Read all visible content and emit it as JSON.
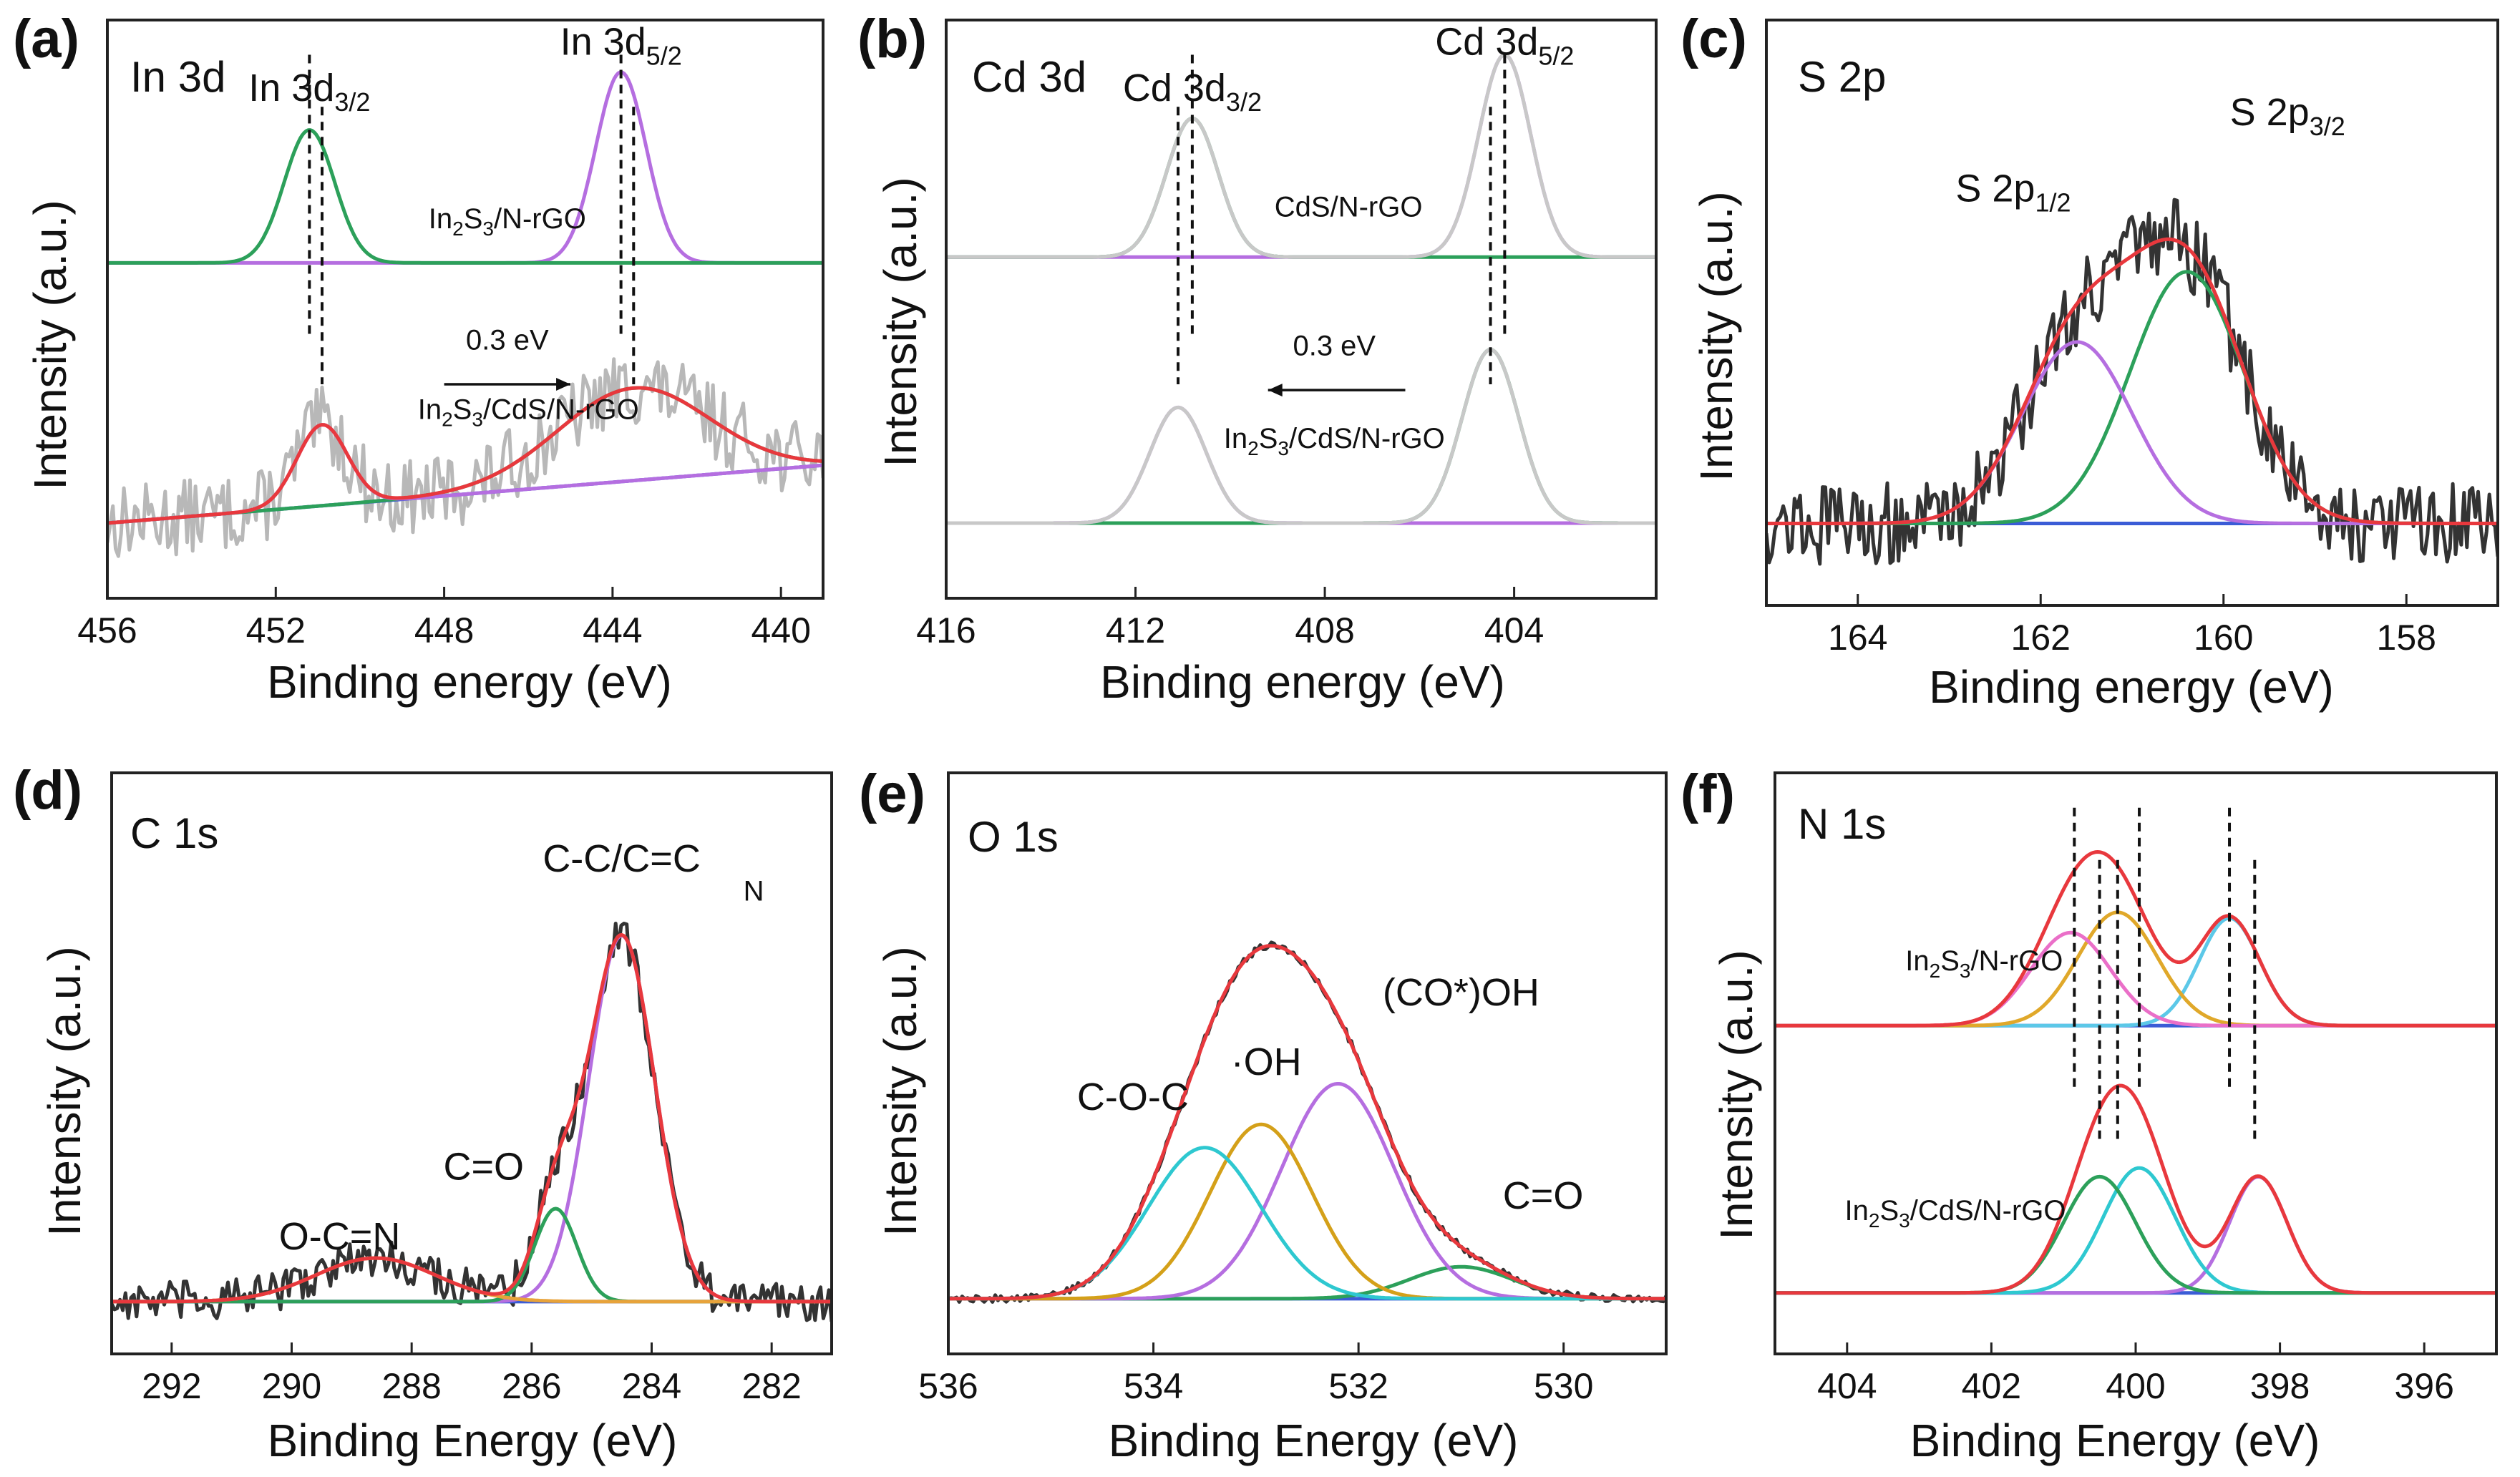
{
  "chart_data": [
    {
      "id": "a",
      "type": "line",
      "panel_label": "(a)",
      "title": "In 3d",
      "xlabel": "Binding energy (eV)",
      "ylabel": "Intensity (a.u.)",
      "xlim": [
        456,
        439
      ],
      "xticks": [
        456,
        452,
        448,
        444,
        440
      ],
      "ylim": [
        0,
        10
      ],
      "series": [
        {
          "name": "In2S3/N-rGO In 3d3/2 fit",
          "color": "#2ca05a",
          "baseline": 5.8,
          "peaks": [
            {
              "center": 451.2,
              "height": 2.3,
              "width": 0.6
            }
          ]
        },
        {
          "name": "In2S3/N-rGO In 3d5/2 fit",
          "color": "#b56ee0",
          "baseline": 5.8,
          "peaks": [
            {
              "center": 443.8,
              "height": 3.3,
              "width": 0.6
            }
          ]
        },
        {
          "name": "In2S3/CdS/N-rGO envelope",
          "color": "#e8383d",
          "baseline": [
            1.3,
            2.3
          ],
          "peaks": [
            {
              "center": 450.9,
              "height": 1.4,
              "width": 0.6
            },
            {
              "center": 443.5,
              "height": 1.6,
              "width": 1.8
            }
          ]
        },
        {
          "name": "In2S3/CdS/N-rGO In 3d3/2 fit",
          "color": "#b56ee0",
          "baseline": [
            1.3,
            2.3
          ],
          "peaks": [
            {
              "center": 450.9,
              "height": 1.4,
              "width": 0.6
            }
          ]
        },
        {
          "name": "In2S3/CdS/N-rGO In 3d5/2 fit",
          "color": "#2ca05a",
          "baseline": [
            1.3,
            2.3
          ],
          "peaks": [
            {
              "center": 443.5,
              "height": 1.6,
              "width": 1.8
            }
          ]
        },
        {
          "name": "background",
          "color": "#3b5cd6",
          "baseline": [
            1.3,
            2.3
          ],
          "peaks": []
        }
      ],
      "raw": {
        "color": "#b8b8b8",
        "of": "In2S3/CdS/N-rGO envelope",
        "noise": 0.65
      },
      "dashed_x": [
        451.2,
        450.9,
        443.8,
        443.5
      ],
      "annotations": [
        {
          "text": "In 3d",
          "sub": "3/2",
          "x": 451.2,
          "y": 8.6,
          "size": "ann"
        },
        {
          "text": "In 3d",
          "sub": "5/2",
          "x": 443.8,
          "y": 9.4,
          "size": "ann"
        },
        {
          "text": "In",
          "sub": "2",
          "mid": "S",
          "sub2": "3",
          "tail": "/N-rGO",
          "x": 446.5,
          "y": 6.4,
          "size": "sann"
        },
        {
          "text": "0.3 eV",
          "x": 446.5,
          "y": 4.3,
          "size": "sann"
        },
        {
          "text": "In",
          "sub": "2",
          "mid": "S",
          "sub2": "3",
          "tail": "/CdS/N-rGO",
          "x": 446.0,
          "y": 3.1,
          "size": "sann"
        }
      ],
      "arrow": {
        "from": 448.0,
        "to": 445.0,
        "y": 3.7,
        "direction": "right",
        "label": "0.3 eV"
      }
    },
    {
      "id": "b",
      "type": "line",
      "panel_label": "(b)",
      "title": "Cd 3d",
      "xlabel": "Binding energy (eV)",
      "ylabel": "Intensity (a.u.)",
      "xlim": [
        416,
        401
      ],
      "xticks": [
        416,
        412,
        408,
        404
      ],
      "ylim": [
        0,
        10
      ],
      "series": [
        {
          "name": "CdS/N-rGO envelope",
          "color": "#c8c8c8",
          "baseline": 5.9,
          "peaks": [
            {
              "center": 410.8,
              "height": 2.4,
              "width": 0.55
            },
            {
              "center": 404.2,
              "height": 3.5,
              "width": 0.55
            }
          ]
        },
        {
          "name": "CdS/N-rGO Cd 3d3/2 fit",
          "color": "#2ca05a",
          "baseline": 5.9,
          "peaks": [
            {
              "center": 410.8,
              "height": 2.4,
              "width": 0.55
            }
          ]
        },
        {
          "name": "CdS/N-rGO Cd 3d5/2 fit",
          "color": "#b56ee0",
          "baseline": 5.9,
          "peaks": [
            {
              "center": 404.2,
              "height": 3.5,
              "width": 0.55
            }
          ]
        },
        {
          "name": "In2S3/CdS/N-rGO envelope",
          "color": "#c8c8c8",
          "baseline": 1.3,
          "peaks": [
            {
              "center": 411.1,
              "height": 2.0,
              "width": 0.6
            },
            {
              "center": 404.5,
              "height": 3.0,
              "width": 0.6
            }
          ]
        },
        {
          "name": "In2S3/CdS/N-rGO Cd 3d3/2 fit",
          "color": "#b56ee0",
          "baseline": 1.3,
          "peaks": [
            {
              "center": 411.1,
              "height": 2.0,
              "width": 0.6
            }
          ]
        },
        {
          "name": "In2S3/CdS/N-rGO Cd 3d5/2 fit",
          "color": "#2ca05a",
          "baseline": 1.3,
          "peaks": [
            {
              "center": 404.5,
              "height": 3.0,
              "width": 0.6
            }
          ]
        }
      ],
      "dashed_x": [
        410.8,
        411.1,
        404.2,
        404.5
      ],
      "annotations": [
        {
          "text": "Cd 3d",
          "sub": "3/2",
          "x": 410.8,
          "y": 8.6,
          "size": "ann"
        },
        {
          "text": "Cd 3d",
          "sub": "5/2",
          "x": 404.2,
          "y": 9.4,
          "size": "ann"
        },
        {
          "text": "CdS/N-rGO",
          "x": 407.5,
          "y": 6.6,
          "size": "sann"
        },
        {
          "text": "0.3 eV",
          "x": 407.8,
          "y": 4.2,
          "size": "sann"
        },
        {
          "text": "In",
          "sub": "2",
          "mid": "S",
          "sub2": "3",
          "tail": "/CdS/N-rGO",
          "x": 407.8,
          "y": 2.6,
          "size": "sann"
        }
      ],
      "arrow": {
        "from": 406.3,
        "to": 409.2,
        "y": 3.6,
        "direction": "left",
        "label": "0.3 eV"
      }
    },
    {
      "id": "c",
      "type": "line",
      "panel_label": "(c)",
      "title": "S 2p",
      "xlabel": "Binding energy (eV)",
      "ylabel": "Intensity (a.u.)",
      "xlim": [
        165,
        157
      ],
      "xticks": [
        164,
        162,
        160,
        158
      ],
      "ylim": [
        0,
        10
      ],
      "series": [
        {
          "name": "envelope",
          "color": "#e8383d",
          "baseline": 1.4,
          "peaks": [
            {
              "center": 161.6,
              "height": 3.1,
              "width": 0.6
            },
            {
              "center": 160.4,
              "height": 4.3,
              "width": 0.62
            }
          ]
        },
        {
          "name": "S 2p1/2 fit",
          "color": "#b56ee0",
          "baseline": 1.4,
          "peaks": [
            {
              "center": 161.6,
              "height": 3.1,
              "width": 0.6
            }
          ]
        },
        {
          "name": "S 2p3/2 fit",
          "color": "#2ca05a",
          "baseline": 1.4,
          "peaks": [
            {
              "center": 160.4,
              "height": 4.3,
              "width": 0.62
            }
          ]
        },
        {
          "name": "background",
          "color": "#3b5cd6",
          "baseline": 1.4,
          "peaks": []
        }
      ],
      "raw": {
        "color": "#333333",
        "of": "envelope",
        "noise": 0.7
      },
      "dashed_x": [],
      "annotations": [
        {
          "text": "S 2p",
          "sub": "1/2",
          "x": 162.3,
          "y": 6.9,
          "size": "ann"
        },
        {
          "text": "S 2p",
          "sub": "3/2",
          "x": 159.3,
          "y": 8.2,
          "size": "ann"
        }
      ]
    },
    {
      "id": "d",
      "type": "line",
      "panel_label": "(d)",
      "title": "C 1s",
      "xlabel": "Binding Energy (eV)",
      "ylabel": "Intensity (a.u.)",
      "xlim": [
        293,
        281
      ],
      "xticks": [
        292,
        290,
        288,
        286,
        284,
        282
      ],
      "ylim": [
        0,
        10
      ],
      "series": [
        {
          "name": "envelope",
          "color": "#e8383d",
          "baseline": 0.9,
          "peaks": [
            {
              "center": 288.6,
              "height": 0.75,
              "width": 1.0
            },
            {
              "center": 285.6,
              "height": 1.6,
              "width": 0.35
            },
            {
              "center": 284.5,
              "height": 6.3,
              "width": 0.55
            }
          ]
        },
        {
          "name": "O-C=N",
          "color": "#e8a33a",
          "baseline": 0.9,
          "peaks": [
            {
              "center": 288.6,
              "height": 0.75,
              "width": 1.0
            }
          ]
        },
        {
          "name": "C=O",
          "color": "#2ca05a",
          "baseline": 0.9,
          "peaks": [
            {
              "center": 285.6,
              "height": 1.6,
              "width": 0.35
            }
          ]
        },
        {
          "name": "C-C/C=C",
          "color": "#b56ee0",
          "baseline": 0.9,
          "peaks": [
            {
              "center": 284.5,
              "height": 6.3,
              "width": 0.55
            }
          ]
        },
        {
          "name": "background",
          "color": "#3b5cd6",
          "baseline": 0.9,
          "peaks": []
        }
      ],
      "raw": {
        "color": "#333333",
        "of": "envelope",
        "noise": 0.35
      },
      "dashed_x": [],
      "annotations": [
        {
          "text": "C-C/C=C",
          "x": 284.5,
          "y": 8.3,
          "size": "ann"
        },
        {
          "text": "N",
          "x": 282.3,
          "y": 7.8,
          "size": "sann"
        },
        {
          "text": "C=O",
          "x": 286.8,
          "y": 3.0,
          "size": "ann"
        },
        {
          "text": "O-C=N",
          "x": 289.2,
          "y": 1.8,
          "size": "ann"
        }
      ]
    },
    {
      "id": "e",
      "type": "line",
      "panel_label": "(e)",
      "title": "O 1s",
      "xlabel": "Binding Energy (eV)",
      "ylabel": "Intensity (a.u.)",
      "xlim": [
        536,
        529
      ],
      "xticks": [
        536,
        534,
        532,
        530
      ],
      "ylim": [
        0,
        10
      ],
      "series": [
        {
          "name": "envelope",
          "color": "#e8383d",
          "baseline": 0.95,
          "peaks": [
            {
              "center": 533.5,
              "height": 2.6,
              "width": 0.55
            },
            {
              "center": 532.95,
              "height": 3.0,
              "width": 0.5
            },
            {
              "center": 532.2,
              "height": 3.7,
              "width": 0.55
            },
            {
              "center": 531.0,
              "height": 0.55,
              "width": 0.5
            }
          ]
        },
        {
          "name": "C-O-C",
          "color": "#2ec8d0",
          "baseline": 0.95,
          "peaks": [
            {
              "center": 533.5,
              "height": 2.6,
              "width": 0.55
            }
          ]
        },
        {
          "name": "·OH",
          "color": "#d4a019",
          "baseline": 0.95,
          "peaks": [
            {
              "center": 532.95,
              "height": 3.0,
              "width": 0.5
            }
          ]
        },
        {
          "name": "(CO*)OH",
          "color": "#b56ee0",
          "baseline": 0.95,
          "peaks": [
            {
              "center": 532.2,
              "height": 3.7,
              "width": 0.55
            }
          ]
        },
        {
          "name": "C=O",
          "color": "#2ca05a",
          "baseline": 0.95,
          "peaks": [
            {
              "center": 531.0,
              "height": 0.55,
              "width": 0.5
            }
          ]
        },
        {
          "name": "background",
          "color": "#3b5cd6",
          "baseline": 0.95,
          "peaks": []
        }
      ],
      "raw": {
        "color": "#333333",
        "of": "envelope",
        "noise": 0.06
      },
      "dashed_x": [],
      "annotations": [
        {
          "text": "C-O-C",
          "x": 534.2,
          "y": 4.2,
          "size": "ann"
        },
        {
          "text": "·OH",
          "x": 532.9,
          "y": 4.8,
          "size": "ann"
        },
        {
          "text": "(CO*)OH",
          "x": 531.0,
          "y": 6.0,
          "size": "ann"
        },
        {
          "text": "C=O",
          "x": 530.2,
          "y": 2.5,
          "size": "ann"
        }
      ]
    },
    {
      "id": "f",
      "type": "line",
      "panel_label": "(f)",
      "title": "N 1s",
      "xlabel": "Binding Energy (eV)",
      "ylabel": "Intensity (a.u.)",
      "xlim": [
        405,
        395
      ],
      "xticks": [
        404,
        402,
        400,
        398,
        396
      ],
      "ylim": [
        0,
        10
      ],
      "series": [
        {
          "name": "In2S3/N-rGO envelope",
          "color": "#e8383d",
          "baseline": 5.65,
          "peaks": [
            {
              "center": 400.9,
              "height": 1.6,
              "width": 0.55
            },
            {
              "center": 400.25,
              "height": 1.95,
              "width": 0.55
            },
            {
              "center": 398.7,
              "height": 1.85,
              "width": 0.42
            }
          ]
        },
        {
          "name": "In2S3/N-rGO peak 1",
          "color": "#ea6fc8",
          "baseline": 5.65,
          "peaks": [
            {
              "center": 400.9,
              "height": 1.6,
              "width": 0.55
            }
          ]
        },
        {
          "name": "In2S3/N-rGO peak 2",
          "color": "#e0a82a",
          "baseline": 5.65,
          "peaks": [
            {
              "center": 400.25,
              "height": 1.95,
              "width": 0.55
            }
          ]
        },
        {
          "name": "In2S3/N-rGO peak 3",
          "color": "#5cc8e8",
          "baseline": 5.65,
          "peaks": [
            {
              "center": 398.7,
              "height": 1.85,
              "width": 0.42
            }
          ]
        },
        {
          "name": "In2S3/N-rGO background",
          "color": "#3b5cd6",
          "baseline": 5.65,
          "peaks": []
        },
        {
          "name": "In2S3/CdS/N-rGO envelope",
          "color": "#e8383d",
          "baseline": 1.05,
          "peaks": [
            {
              "center": 400.5,
              "height": 2.0,
              "width": 0.5
            },
            {
              "center": 399.95,
              "height": 2.15,
              "width": 0.5
            },
            {
              "center": 398.3,
              "height": 2.0,
              "width": 0.4
            }
          ]
        },
        {
          "name": "In2S3/CdS/N-rGO peak 1",
          "color": "#2ca05a",
          "baseline": 1.05,
          "peaks": [
            {
              "center": 400.5,
              "height": 2.0,
              "width": 0.5
            }
          ]
        },
        {
          "name": "In2S3/CdS/N-rGO peak 2",
          "color": "#2ec8d0",
          "baseline": 1.05,
          "peaks": [
            {
              "center": 399.95,
              "height": 2.15,
              "width": 0.5
            }
          ]
        },
        {
          "name": "In2S3/CdS/N-rGO peak 3",
          "color": "#b56ee0",
          "baseline": 1.05,
          "peaks": [
            {
              "center": 398.3,
              "height": 2.0,
              "width": 0.4
            }
          ]
        },
        {
          "name": "In2S3/CdS/N-rGO background",
          "color": "#3b5cd6",
          "baseline": 1.05,
          "peaks": []
        }
      ],
      "dashed_x": [
        400.85,
        400.25,
        398.7,
        400.5,
        399.95,
        398.35
      ],
      "annotations": [
        {
          "text": "In",
          "sub": "2",
          "mid": "S",
          "sub2": "3",
          "tail": "/N-rGO",
          "x": 402.1,
          "y": 6.6,
          "size": "sann"
        },
        {
          "text": "In",
          "sub": "2",
          "mid": "S",
          "sub2": "3",
          "tail": "/CdS/N-rGO",
          "x": 402.5,
          "y": 2.3,
          "size": "sann"
        }
      ]
    }
  ]
}
